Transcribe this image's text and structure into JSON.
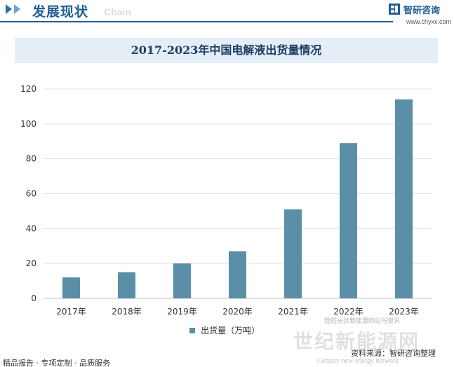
{
  "header": {
    "section_title": "发展现状",
    "section_subtitle": "Chain"
  },
  "brand": {
    "name": "智研咨询",
    "url": "www.chyxx.com"
  },
  "chart_data": {
    "type": "bar",
    "title": "2017-2023年中国电解液出货量情况",
    "categories": [
      "2017年",
      "2018年",
      "2019年",
      "2020年",
      "2021年",
      "2022年",
      "2023年"
    ],
    "series": [
      {
        "name": "出货量（万吨）",
        "values": [
          12,
          15,
          20,
          27,
          51,
          89,
          114
        ]
      }
    ],
    "ylim": [
      0,
      120
    ],
    "yticks": [
      0,
      20,
      40,
      60,
      80,
      100,
      120
    ],
    "grid": true,
    "legend_position": "bottom",
    "bar_color": "#5b8fa8"
  },
  "footer": {
    "left": "精品报告 · 专项定制 · 品质服务",
    "source": "资料来源：智研咨询整理"
  },
  "watermarks": {
    "cn": "世纪新能源网",
    "small": "我的光伏新能源网站与资讯",
    "en": "Century new energy network"
  }
}
